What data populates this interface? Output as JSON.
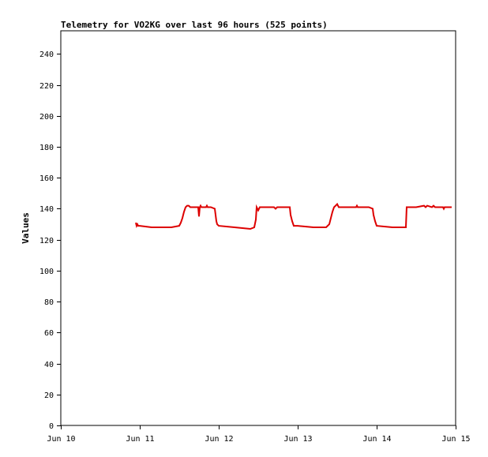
{
  "chart_data": {
    "type": "line",
    "title": "Telemetry for VO2KG over last 96 hours (525 points)",
    "xlabel": "",
    "ylabel": "Values",
    "xlim": [
      0,
      5
    ],
    "ylim": [
      0,
      255
    ],
    "grid": false,
    "x_ticks": [
      {
        "value": 0,
        "label": "Jun 10"
      },
      {
        "value": 1,
        "label": "Jun 11"
      },
      {
        "value": 2,
        "label": "Jun 12"
      },
      {
        "value": 3,
        "label": "Jun 13"
      },
      {
        "value": 4,
        "label": "Jun 14"
      },
      {
        "value": 5,
        "label": "Jun 15"
      }
    ],
    "y_ticks": [
      0,
      20,
      40,
      60,
      80,
      100,
      120,
      140,
      160,
      180,
      200,
      220,
      240
    ],
    "series": [
      {
        "color": "#dd0000",
        "x": [
          0.95,
          0.96,
          0.97,
          0.98,
          1.0,
          1.15,
          1.3,
          1.4,
          1.5,
          1.52,
          1.54,
          1.56,
          1.58,
          1.6,
          1.62,
          1.64,
          1.66,
          1.68,
          1.7,
          1.74,
          1.75,
          1.76,
          1.77,
          1.78,
          1.8,
          1.84,
          1.85,
          1.86,
          1.9,
          1.95,
          1.96,
          1.97,
          1.98,
          2.0,
          2.2,
          2.4,
          2.45,
          2.47,
          2.48,
          2.49,
          2.5,
          2.52,
          2.54,
          2.56,
          2.58,
          2.6,
          2.7,
          2.72,
          2.74,
          2.9,
          2.91,
          2.92,
          2.93,
          2.95,
          3.0,
          3.2,
          3.36,
          3.4,
          3.42,
          3.44,
          3.46,
          3.48,
          3.5,
          3.52,
          3.54,
          3.56,
          3.6,
          3.74,
          3.75,
          3.76,
          3.9,
          3.95,
          3.96,
          3.98,
          4.0,
          4.2,
          4.37,
          4.38,
          4.4,
          4.5,
          4.6,
          4.62,
          4.64,
          4.7,
          4.72,
          4.74,
          4.8,
          4.84,
          4.85,
          4.86,
          4.9,
          4.95
        ],
        "values": [
          131,
          129,
          130,
          129,
          129,
          128,
          128,
          128,
          129,
          131,
          134,
          138,
          141,
          142,
          142,
          141,
          141,
          141,
          141,
          141,
          135,
          141,
          142,
          141,
          141,
          141,
          142,
          141,
          141,
          140,
          136,
          132,
          130,
          129,
          128,
          127,
          128,
          133,
          141,
          140,
          139,
          141,
          141,
          141,
          141,
          141,
          141,
          140,
          141,
          141,
          136,
          134,
          132,
          129,
          129,
          128,
          128,
          130,
          134,
          138,
          141,
          142,
          143,
          141,
          141,
          141,
          141,
          141,
          142,
          141,
          141,
          140,
          136,
          132,
          129,
          128,
          128,
          141,
          141,
          141,
          142,
          141,
          142,
          141,
          142,
          141,
          141,
          141,
          140,
          141,
          141,
          141
        ]
      }
    ]
  }
}
